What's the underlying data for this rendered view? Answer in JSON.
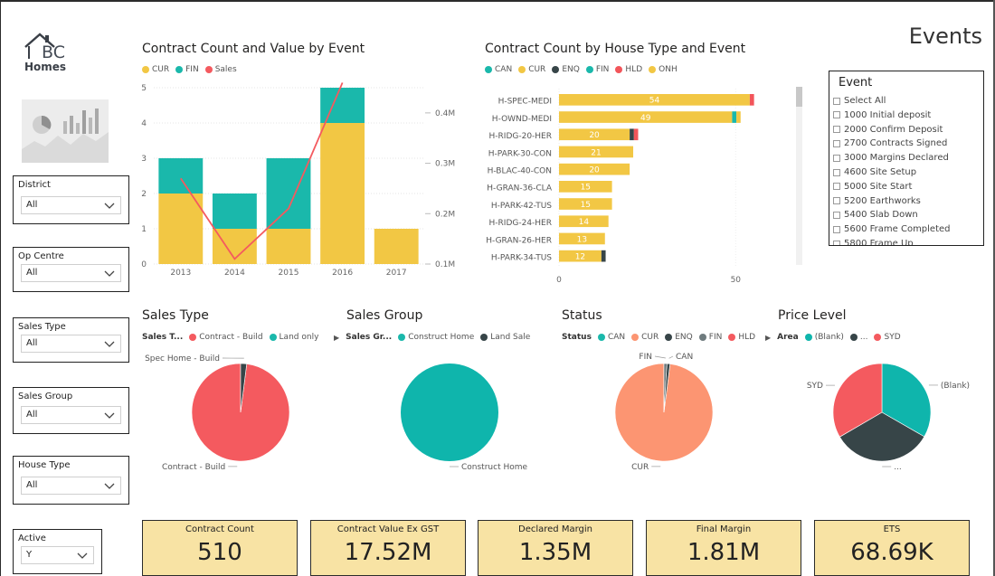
{
  "page_title": "Events",
  "logo": {
    "letters": "BC",
    "word": "Homes"
  },
  "colors": {
    "cur": "#f2c744",
    "fin": "#1ab8ab",
    "sales": "#f45a5f",
    "dark": "#374548",
    "hld": "#f2555a",
    "cur_status": "#fc9572",
    "grey_status": "#6f7b7e",
    "blank": "#0fb5ac"
  },
  "slicers": [
    {
      "title": "District",
      "value": "All"
    },
    {
      "title": "Op Centre",
      "value": "All"
    },
    {
      "title": "Sales Type",
      "value": "All"
    },
    {
      "title": "Sales Group",
      "value": "All"
    },
    {
      "title": "House Type",
      "value": "All"
    },
    {
      "title": "Active",
      "value": "Y"
    }
  ],
  "event_slicer": {
    "title": "Event",
    "items": [
      "Select All",
      "1000 Initial deposit",
      "2000 Confirm Deposit",
      "2700 Contracts Signed",
      "3000 Margins Declared",
      "4600 Site Setup",
      "5000 Site Start",
      "5200 Earthworks",
      "5400 Slab Down",
      "5600 Frame Completed",
      "5800 Frame Up"
    ]
  },
  "chart_data": [
    {
      "type": "bar",
      "title": "Contract Count and Value by Event",
      "legend": [
        "CUR",
        "FIN",
        "Sales"
      ],
      "categories": [
        "2013",
        "2014",
        "2015",
        "2016",
        "2017"
      ],
      "series": [
        {
          "name": "CUR",
          "values": [
            2,
            1,
            1,
            4,
            1
          ]
        },
        {
          "name": "FIN",
          "values": [
            1,
            1,
            2,
            1,
            0
          ]
        }
      ],
      "line_series": {
        "name": "Sales",
        "values": [
          0.27,
          0.11,
          0.21,
          0.46,
          null
        ]
      },
      "ylim": [
        0,
        5
      ],
      "y_ticks": [
        "0",
        "1",
        "2",
        "3",
        "4",
        "5"
      ],
      "y2_ticks": [
        "0.1M",
        "0.2M",
        "0.3M",
        "0.4M"
      ],
      "y2lim": [
        0.1,
        0.45
      ]
    },
    {
      "type": "bar",
      "title": "Contract Count by House Type and Event",
      "legend": [
        "CAN",
        "CUR",
        "ENQ",
        "FIN",
        "HLD",
        "ONH"
      ],
      "categories": [
        "H-SPEC-MEDI",
        "H-OWND-MEDI",
        "H-RIDG-20-HER",
        "H-PARK-30-CON",
        "H-BLAC-40-CON",
        "H-GRAN-36-CLA",
        "H-PARK-42-TUS",
        "H-RIDG-24-HER",
        "H-GRAN-26-HER",
        "H-PARK-34-TUS"
      ],
      "cur_values": [
        54,
        49,
        20,
        21,
        20,
        15,
        15,
        14,
        13,
        12
      ],
      "cur_labels": [
        "54",
        "49",
        "20",
        "21",
        "20",
        "15",
        "15",
        "14",
        "13",
        "12"
      ],
      "extras": [
        [
          {
            "series": "HLD",
            "value": 1
          }
        ],
        [
          {
            "series": "FIN",
            "value": 1
          },
          {
            "series": "CUR2",
            "value": 1
          }
        ],
        [
          {
            "series": "ENQ",
            "value": 1
          },
          {
            "series": "HLD",
            "value": 1
          }
        ],
        [],
        [],
        [],
        [],
        [],
        [],
        [
          {
            "series": "ENQ",
            "value": 1
          }
        ]
      ],
      "x_ticks": [
        "0",
        "50"
      ],
      "xlim": [
        0,
        60
      ]
    },
    {
      "type": "pie",
      "title": "Sales Type",
      "legend_label": "Sales T...",
      "legend": [
        "Contract - Build",
        "Land only"
      ],
      "slices": [
        {
          "name": "Contract - Build",
          "value": 98,
          "label": "Contract - Build"
        },
        {
          "name": "Spec Home - Build",
          "value": 2,
          "label": "Spec Home - Build"
        }
      ]
    },
    {
      "type": "pie",
      "title": "Sales Group",
      "legend_label": "Sales Gr...",
      "legend": [
        "Construct Home",
        "Land Sale"
      ],
      "slices": [
        {
          "name": "Construct Home",
          "value": 100,
          "label": "Construct Home"
        }
      ]
    },
    {
      "type": "pie",
      "title": "Status",
      "legend_label": "Status",
      "legend": [
        "CAN",
        "CUR",
        "ENQ",
        "FIN",
        "HLD"
      ],
      "slices": [
        {
          "name": "CUR",
          "value": 98,
          "label": "CUR"
        },
        {
          "name": "FIN",
          "value": 1,
          "label": "FIN"
        },
        {
          "name": "CAN",
          "value": 1,
          "label": "CAN"
        }
      ]
    },
    {
      "type": "pie",
      "title": "Price Level",
      "legend_label": "Area",
      "legend": [
        "(Blank)",
        "...",
        "SYD"
      ],
      "slices": [
        {
          "name": "(Blank)",
          "value": 33.3,
          "label": "(Blank)"
        },
        {
          "name": "...",
          "value": 33.3,
          "label": "..."
        },
        {
          "name": "SYD",
          "value": 33.4,
          "label": "SYD"
        }
      ]
    }
  ],
  "cards": [
    {
      "label": "Contract Count",
      "value": "510"
    },
    {
      "label": "Contract Value Ex GST",
      "value": "17.52M"
    },
    {
      "label": "Declared Margin",
      "value": "1.35M"
    },
    {
      "label": "Final Margin",
      "value": "1.81M"
    },
    {
      "label": "ETS",
      "value": "68.69K"
    }
  ]
}
